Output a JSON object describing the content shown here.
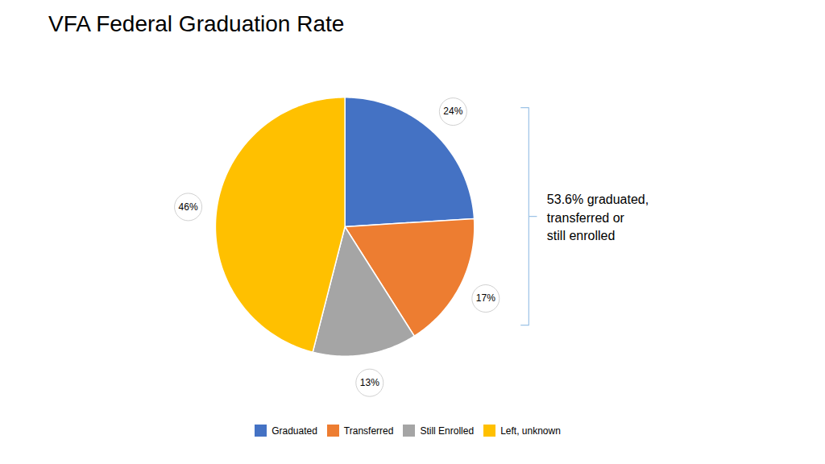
{
  "chart_data": {
    "type": "pie",
    "title": "VFA Federal Graduation Rate",
    "categories": [
      "Graduated",
      "Transferred",
      "Still Enrolled",
      "Left, unknown"
    ],
    "values": [
      24,
      17,
      13,
      46
    ],
    "value_labels": [
      "24%",
      "17%",
      "13%",
      "46%"
    ],
    "colors": [
      "#4472C4",
      "#ED7D31",
      "#A5A5A5",
      "#FFC000"
    ],
    "data_labels": true,
    "annotation": "53.6% graduated,\ntransferred or\nstill enrolled",
    "legend": "bottom"
  }
}
